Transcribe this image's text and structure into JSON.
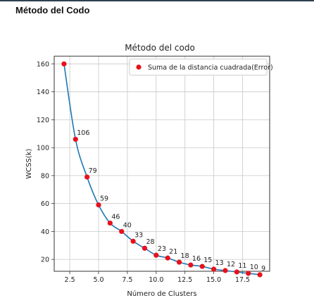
{
  "page": {
    "heading": "Método del Codo"
  },
  "chart_data": {
    "type": "line",
    "title": "Método del codo",
    "xlabel": "Número de Clusters",
    "ylabel": "WCSS(k)",
    "xlim": [
      1.15,
      19.85
    ],
    "ylim": [
      11.5,
      165.5
    ],
    "xticks": [
      "2.5",
      "5.0",
      "7.5",
      "10.0",
      "12.5",
      "15.0",
      "17.5"
    ],
    "yticks": [
      "20",
      "40",
      "60",
      "80",
      "100",
      "120",
      "140",
      "160"
    ],
    "grid": true,
    "legend_position": "top-right",
    "series": [
      {
        "name": "Suma de la distancia cuadrada(Error)",
        "x": [
          2,
          3,
          4,
          5,
          6,
          7,
          8,
          9,
          10,
          11,
          12,
          13,
          14,
          15,
          16,
          17,
          18,
          19
        ],
        "values": [
          160,
          106,
          79,
          59,
          46,
          40,
          33,
          28,
          23,
          21,
          18,
          16,
          15,
          13,
          12,
          11,
          10,
          9
        ],
        "labels": [
          "",
          "106",
          "79",
          "59",
          "46",
          "40",
          "33",
          "28",
          "23",
          "21",
          "18",
          "16",
          "15",
          "13",
          "12",
          "11",
          "10",
          "9"
        ]
      }
    ],
    "colors": {
      "line": "#1f77b4",
      "marker": "#e8111b",
      "grid": "#c8c8c8"
    }
  }
}
